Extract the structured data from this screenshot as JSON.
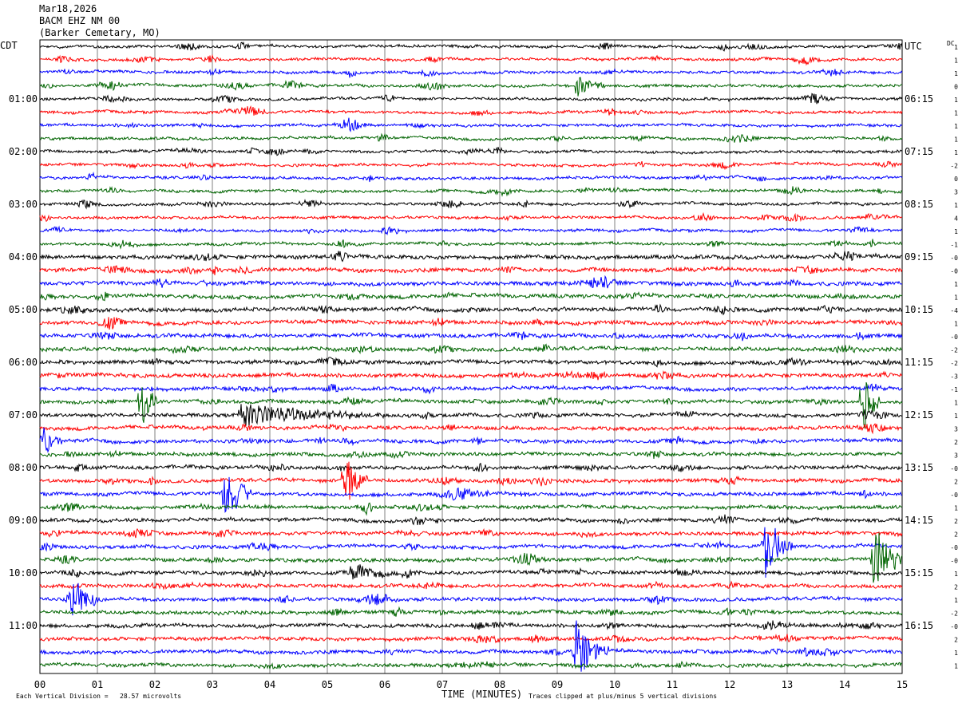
{
  "header": {
    "date": "Mar18,2026",
    "station": "BACM EHZ NM 00",
    "location": "(Barker Cemetary, MO)"
  },
  "left_tz": "CDT",
  "right_tz": "UTC",
  "dc_label": "DC",
  "footer": {
    "scale_note": "Each Vertical Division =   28.57 microvolts",
    "xlabel": "TIME (MINUTES)",
    "clip_note": "Traces clipped at plus/minus 5 vertical divisions"
  },
  "colors": {
    "cycle": [
      "#000000",
      "#ff0000",
      "#0000ff",
      "#006400"
    ],
    "grid": "#808080"
  },
  "chart_data": {
    "type": "line",
    "title": "BACM EHZ NM 00 (Barker Cemetary, MO) Mar18,2026",
    "xlabel": "TIME (MINUTES)",
    "xlim": [
      0,
      15
    ],
    "x_ticks": [
      "00",
      "01",
      "02",
      "03",
      "04",
      "05",
      "06",
      "07",
      "08",
      "09",
      "10",
      "11",
      "12",
      "13",
      "14",
      "15"
    ],
    "minutes_per_trace": 15,
    "trace_count": 48,
    "left_time_labels": [
      {
        "trace": 4,
        "label": "01:00"
      },
      {
        "trace": 8,
        "label": "02:00"
      },
      {
        "trace": 12,
        "label": "03:00"
      },
      {
        "trace": 16,
        "label": "04:00"
      },
      {
        "trace": 20,
        "label": "05:00"
      },
      {
        "trace": 24,
        "label": "06:00"
      },
      {
        "trace": 28,
        "label": "07:00"
      },
      {
        "trace": 32,
        "label": "08:00"
      },
      {
        "trace": 36,
        "label": "09:00"
      },
      {
        "trace": 40,
        "label": "10:00"
      },
      {
        "trace": 44,
        "label": "11:00"
      }
    ],
    "right_time_labels": [
      {
        "trace": 0,
        "label": "UTC"
      },
      {
        "trace": 4,
        "label": "06:15"
      },
      {
        "trace": 8,
        "label": "07:15"
      },
      {
        "trace": 12,
        "label": "08:15"
      },
      {
        "trace": 16,
        "label": "09:15"
      },
      {
        "trace": 20,
        "label": "10:15"
      },
      {
        "trace": 24,
        "label": "11:15"
      },
      {
        "trace": 28,
        "label": "12:15"
      },
      {
        "trace": 32,
        "label": "13:15"
      },
      {
        "trace": 36,
        "label": "14:15"
      },
      {
        "trace": 40,
        "label": "15:15"
      },
      {
        "trace": 44,
        "label": "16:15"
      }
    ],
    "dc_offsets": [
      "1",
      "1",
      "1",
      "0",
      "1",
      "1",
      "1",
      "1",
      "1",
      "-2",
      "0",
      "3",
      "1",
      "4",
      "1",
      "-1",
      "-0",
      "-0",
      "1",
      "1",
      "-4",
      "1",
      "-0",
      "-2",
      "-2",
      "-3",
      "-1",
      "1",
      "1",
      "3",
      "2",
      "3",
      "-0",
      "2",
      "-0",
      "1",
      "2",
      "2",
      "-0",
      "-0",
      "1",
      "2",
      "1",
      "-2",
      "-0",
      "2",
      "1",
      "1"
    ],
    "events": [
      {
        "trace": 27,
        "minute": 1.75,
        "amp": 5,
        "width": 0.3
      },
      {
        "trace": 27,
        "minute": 14.3,
        "amp": 5,
        "width": 0.3
      },
      {
        "trace": 28,
        "minute": 3.5,
        "amp": 1.6,
        "width": 2.5
      },
      {
        "trace": 30,
        "minute": 0.05,
        "amp": 2.5,
        "width": 0.35
      },
      {
        "trace": 33,
        "minute": 5.3,
        "amp": 4.5,
        "width": 0.4
      },
      {
        "trace": 34,
        "minute": 3.2,
        "amp": 5,
        "width": 0.5
      },
      {
        "trace": 38,
        "minute": 12.6,
        "amp": 5,
        "width": 0.5
      },
      {
        "trace": 39,
        "minute": 14.5,
        "amp": 5,
        "width": 0.6
      },
      {
        "trace": 40,
        "minute": 5.4,
        "amp": 1.5,
        "width": 0.8
      },
      {
        "trace": 42,
        "minute": 0.5,
        "amp": 4,
        "width": 0.5
      },
      {
        "trace": 46,
        "minute": 9.3,
        "amp": 4.5,
        "width": 0.6
      },
      {
        "trace": 3,
        "minute": 9.3,
        "amp": 1.8,
        "width": 0.6
      },
      {
        "trace": 3,
        "minute": 1.2,
        "amp": 1.0,
        "width": 0.4
      }
    ]
  }
}
